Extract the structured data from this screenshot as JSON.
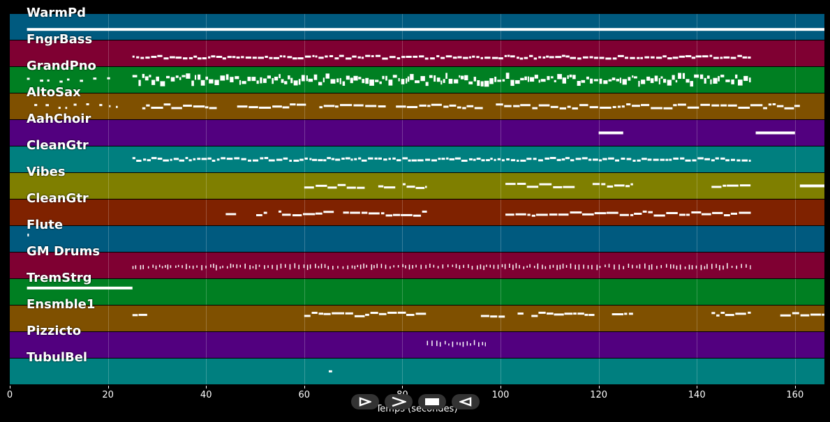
{
  "xaxis": {
    "label": "Temps (secondes)",
    "ticks": [
      "0",
      "20",
      "40",
      "60",
      "80",
      "100",
      "120",
      "140",
      "160"
    ],
    "max": 166
  },
  "transport": {
    "play_icon": "play-icon",
    "forward_icon": "forward-icon",
    "stop_icon": "stop-icon",
    "rewind_icon": "rewind-icon"
  },
  "tracks": [
    {
      "name": "WarmPd",
      "color": "#005a7f",
      "segments": [
        [
          3.5,
          166,
          "solid"
        ]
      ],
      "pitch": 0.6
    },
    {
      "name": "FngrBass",
      "color": "#7f0032",
      "segments": [
        [
          25,
          151,
          "dense"
        ]
      ],
      "pitch": 0.65
    },
    {
      "name": "GrandPno",
      "color": "#007f22",
      "segments": [
        [
          3.5,
          21,
          "sparse"
        ],
        [
          25,
          151,
          "chords"
        ]
      ],
      "pitch": 0.5
    },
    {
      "name": "AltoSax",
      "color": "#7f5000",
      "segments": [
        [
          5,
          22,
          "sparse"
        ],
        [
          27,
          161,
          "phrase"
        ]
      ],
      "pitch": 0.5
    },
    {
      "name": "AahChoir",
      "color": "#52007f",
      "segments": [
        [
          120,
          125,
          "solid"
        ],
        [
          152,
          160,
          "solid"
        ]
      ],
      "pitch": 0.5
    },
    {
      "name": "CleanGtr",
      "color": "#007f7f",
      "segments": [
        [
          25,
          151,
          "dense"
        ]
      ],
      "pitch": 0.5
    },
    {
      "name": "Vibes",
      "color": "#7f7f00",
      "segments": [
        [
          60,
          85,
          "phrase"
        ],
        [
          101,
          127,
          "phrase"
        ],
        [
          143,
          151,
          "phrase"
        ],
        [
          161,
          166,
          "solid"
        ]
      ],
      "pitch": 0.5
    },
    {
      "name": "CleanGtr",
      "color": "#7f2200",
      "segments": [
        [
          44,
          85,
          "phrase"
        ],
        [
          101,
          151,
          "phrase"
        ]
      ],
      "pitch": 0.55
    },
    {
      "name": "Flute",
      "color": "#005a7f",
      "segments": [
        [
          3.6,
          3.9,
          "solid"
        ]
      ],
      "pitch": 0.35
    },
    {
      "name": "GM Drums",
      "color": "#7f0032",
      "segments": [
        [
          25,
          151,
          "ticks"
        ]
      ],
      "pitch": 0.55
    },
    {
      "name": "TremStrg",
      "color": "#007f22",
      "segments": [
        [
          3.5,
          25,
          "solid"
        ]
      ],
      "pitch": 0.35
    },
    {
      "name": "Ensmble1",
      "color": "#7f5000",
      "segments": [
        [
          25,
          28,
          "phrase"
        ],
        [
          60,
          85,
          "phrase"
        ],
        [
          96,
          127,
          "phrase"
        ],
        [
          143,
          151,
          "phrase"
        ],
        [
          157,
          166,
          "phrase"
        ]
      ],
      "pitch": 0.35
    },
    {
      "name": "Pizzicto",
      "color": "#52007f",
      "segments": [
        [
          85,
          97,
          "ticks"
        ]
      ],
      "pitch": 0.45
    },
    {
      "name": "TubulBel",
      "color": "#007f7f",
      "segments": [
        [
          65,
          67,
          "sparse"
        ]
      ],
      "pitch": 0.42
    }
  ]
}
